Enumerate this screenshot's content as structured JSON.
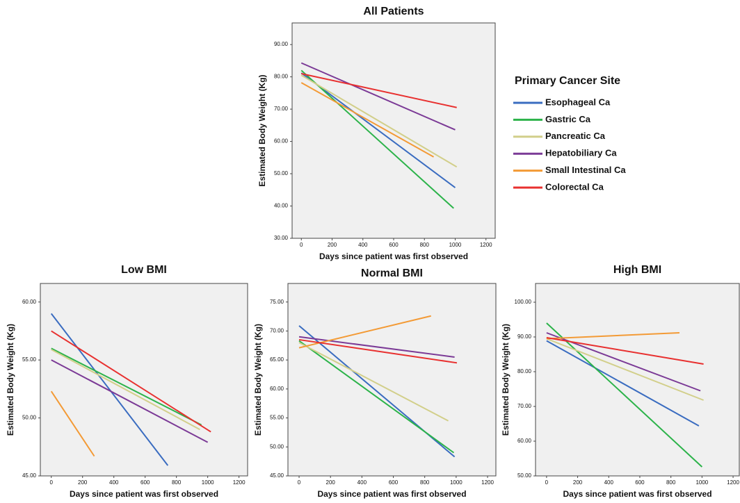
{
  "chart_data": [
    {
      "type": "line",
      "title": "All Patients",
      "x_label": "Days since patient was first observed",
      "y_label": "Estimated Body Weight (Kg)",
      "legend_title": "Primary Cancer Site",
      "xlim": [
        -60,
        1260
      ],
      "xticks": [
        0,
        200,
        400,
        600,
        800,
        1000,
        1200
      ],
      "ylim": [
        30,
        96.7
      ],
      "yticks": [
        {
          "value": 30,
          "label": "30.00"
        },
        {
          "value": 40,
          "label": "40.00"
        },
        {
          "value": 50,
          "label": "50.00"
        },
        {
          "value": 60,
          "label": "60.00"
        },
        {
          "value": 70,
          "label": "70.00"
        },
        {
          "value": 80,
          "label": "80.00"
        },
        {
          "value": 90,
          "label": "90.00"
        }
      ],
      "series": [
        {
          "name": "Esophageal Ca",
          "color": "#3a6cc0",
          "x": [
            0,
            1000
          ],
          "values": [
            81.2,
            45.7
          ]
        },
        {
          "name": "Gastric Ca",
          "color": "#2cb34a",
          "x": [
            0,
            990
          ],
          "values": [
            82.0,
            39.3
          ]
        },
        {
          "name": "Pancreatic Ca",
          "color": "#d2cf8a",
          "x": [
            0,
            1010
          ],
          "values": [
            80.5,
            52.1
          ]
        },
        {
          "name": "Hepatobiliary Ca",
          "color": "#7b3a96",
          "x": [
            0,
            1000
          ],
          "values": [
            84.3,
            63.6
          ]
        },
        {
          "name": "Small Intestinal Ca",
          "color": "#f39a35",
          "x": [
            0,
            860
          ],
          "values": [
            78.2,
            55.2
          ]
        },
        {
          "name": "Colorectal Ca",
          "color": "#e8302f",
          "x": [
            0,
            1010
          ],
          "values": [
            81.0,
            70.5
          ]
        }
      ]
    },
    {
      "type": "line",
      "title": "Low BMI",
      "x_label": "Days since patient was first observed",
      "y_label": "Estimated Body Weight (Kg)",
      "xlim": [
        -70,
        1255
      ],
      "xticks": [
        0,
        200,
        400,
        600,
        800,
        1000,
        1200
      ],
      "ylim": [
        45,
        61.6
      ],
      "yticks": [
        {
          "value": 45,
          "label": "45.00"
        },
        {
          "value": 50,
          "label": "50.00"
        },
        {
          "value": 55,
          "label": "55.00"
        },
        {
          "value": 60,
          "label": "60.00"
        }
      ],
      "series": [
        {
          "color": "#3a6cc0",
          "x": [
            0,
            745
          ],
          "values": [
            59.0,
            45.9
          ]
        },
        {
          "color": "#2cb34a",
          "x": [
            0,
            960
          ],
          "values": [
            56.0,
            49.4
          ]
        },
        {
          "color": "#d2cf8a",
          "x": [
            0,
            950
          ],
          "values": [
            55.9,
            49.0
          ]
        },
        {
          "color": "#7b3a96",
          "x": [
            0,
            1000
          ],
          "values": [
            55.0,
            47.9
          ]
        },
        {
          "color": "#f39a35",
          "x": [
            0,
            275
          ],
          "values": [
            52.3,
            46.7
          ]
        },
        {
          "color": "#e8302f",
          "x": [
            0,
            1020
          ],
          "values": [
            57.5,
            48.8
          ]
        }
      ]
    },
    {
      "type": "line",
      "title": "Normal BMI",
      "x_label": "Days since patient was first observed",
      "y_label": "Estimated Body Weight (Kg)",
      "xlim": [
        -71,
        1253
      ],
      "xticks": [
        0,
        200,
        400,
        600,
        800,
        1000,
        1200
      ],
      "ylim": [
        45,
        78.2
      ],
      "yticks": [
        {
          "value": 45,
          "label": "45.00"
        },
        {
          "value": 50,
          "label": "50.00"
        },
        {
          "value": 55,
          "label": "55.00"
        },
        {
          "value": 60,
          "label": "60.00"
        },
        {
          "value": 65,
          "label": "65.00"
        },
        {
          "value": 70,
          "label": "70.00"
        },
        {
          "value": 75,
          "label": "75.00"
        }
      ],
      "series": [
        {
          "color": "#3a6cc0",
          "x": [
            0,
            990
          ],
          "values": [
            70.9,
            48.3
          ]
        },
        {
          "color": "#2cb34a",
          "x": [
            0,
            985
          ],
          "values": [
            68.3,
            49.0
          ]
        },
        {
          "color": "#d2cf8a",
          "x": [
            0,
            950
          ],
          "values": [
            68.0,
            54.5
          ]
        },
        {
          "color": "#7b3a96",
          "x": [
            0,
            990
          ],
          "values": [
            69.0,
            65.5
          ]
        },
        {
          "color": "#f39a35",
          "x": [
            0,
            840
          ],
          "values": [
            67.1,
            72.6
          ]
        },
        {
          "color": "#e8302f",
          "x": [
            0,
            1005
          ],
          "values": [
            68.5,
            64.5
          ]
        }
      ]
    },
    {
      "type": "line",
      "title": "High BMI",
      "x_label": "Days since patient was first observed",
      "y_label": "Estimated Body Weight (Kg)",
      "xlim": [
        -71,
        1240
      ],
      "xticks": [
        0,
        200,
        400,
        600,
        800,
        1000,
        1200
      ],
      "ylim": [
        50,
        105.4
      ],
      "yticks": [
        {
          "value": 50,
          "label": "50.00"
        },
        {
          "value": 60,
          "label": "60.00"
        },
        {
          "value": 70,
          "label": "70.00"
        },
        {
          "value": 80,
          "label": "80.00"
        },
        {
          "value": 90,
          "label": "90.00"
        },
        {
          "value": 100,
          "label": "100.00"
        }
      ],
      "series": [
        {
          "color": "#3a6cc0",
          "x": [
            0,
            980
          ],
          "values": [
            88.9,
            64.4
          ]
        },
        {
          "color": "#2cb34a",
          "x": [
            0,
            1000
          ],
          "values": [
            94.0,
            52.6
          ]
        },
        {
          "color": "#d2cf8a",
          "x": [
            0,
            1010
          ],
          "values": [
            89.5,
            71.8
          ]
        },
        {
          "color": "#7b3a96",
          "x": [
            0,
            990
          ],
          "values": [
            91.2,
            74.5
          ]
        },
        {
          "color": "#f39a35",
          "x": [
            0,
            855
          ],
          "values": [
            89.5,
            91.2
          ]
        },
        {
          "color": "#e8302f",
          "x": [
            0,
            1010
          ],
          "values": [
            89.8,
            82.2
          ]
        }
      ]
    }
  ]
}
